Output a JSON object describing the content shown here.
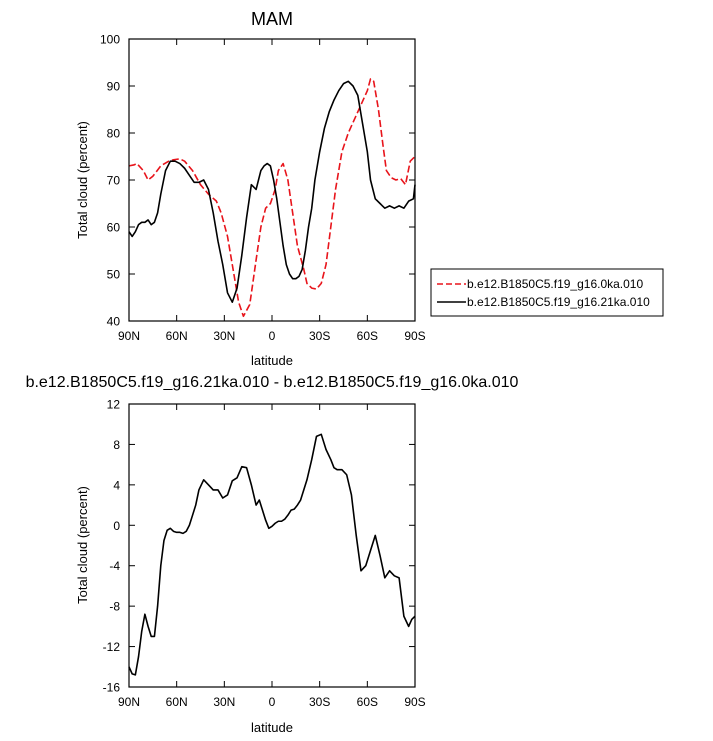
{
  "chart_data": [
    {
      "type": "line",
      "title": "MAM",
      "xlabel": "latitude",
      "ylabel": "Total cloud (percent)",
      "xlim": [
        -90,
        90
      ],
      "ylim": [
        40,
        100
      ],
      "x_ticks": [
        -90,
        -60,
        -30,
        0,
        30,
        60,
        90
      ],
      "x_tick_labels": [
        "90N",
        "60N",
        "30N",
        "0",
        "30S",
        "60S",
        "90S"
      ],
      "y_ticks": [
        40,
        50,
        60,
        70,
        80,
        90,
        100
      ],
      "y_tick_labels": [
        "40",
        "50",
        "60",
        "70",
        "80",
        "90",
        "100"
      ],
      "legend_position": "right",
      "grid": false,
      "series": [
        {
          "name": "b.e12.B1850C5.f19_g16.0ka.010",
          "color": "#e8141b",
          "dash": "dashed",
          "x": [
            -90,
            -87,
            -85,
            -81,
            -78,
            -75,
            -70,
            -65,
            -62,
            -58,
            -55,
            -50,
            -45,
            -40,
            -35,
            -32,
            -28,
            -25,
            -21,
            -18,
            -14,
            -10,
            -7,
            -4,
            -1,
            2,
            4,
            7,
            10,
            13,
            16,
            20,
            22,
            25,
            28,
            31,
            34,
            37,
            40,
            44,
            48,
            52,
            56,
            60,
            62,
            64,
            67,
            70,
            72,
            75,
            78,
            81,
            84,
            87,
            90
          ],
          "y": [
            73,
            73.2,
            73.5,
            72,
            70,
            70.8,
            73,
            74,
            74.3,
            74.5,
            74,
            72,
            69,
            67,
            65.5,
            63,
            58,
            52,
            44,
            41,
            43.5,
            53,
            60,
            64,
            65,
            68,
            72,
            73.5,
            70,
            63,
            56,
            51,
            48,
            47,
            46.8,
            48,
            52,
            60,
            68,
            76,
            80,
            83,
            86,
            89,
            91.5,
            91,
            85,
            77,
            72,
            70.5,
            70,
            70.3,
            69,
            74,
            75
          ]
        },
        {
          "name": "b.e12.B1850C5.f19_g16.21ka.010",
          "color": "#000000",
          "dash": "solid",
          "x": [
            -90,
            -88,
            -86,
            -84,
            -82,
            -80,
            -78,
            -76,
            -74,
            -72,
            -70,
            -67,
            -64,
            -61,
            -58,
            -55,
            -52,
            -49,
            -46,
            -43,
            -40,
            -37,
            -34,
            -31,
            -28,
            -25,
            -22,
            -19,
            -16,
            -13,
            -10,
            -7,
            -5,
            -3,
            -1,
            1,
            3,
            5,
            7,
            9,
            11,
            13,
            15,
            17,
            19,
            21,
            23,
            25,
            27,
            30,
            33,
            36,
            39,
            42,
            45,
            48,
            51,
            54,
            57,
            60,
            62,
            65,
            68,
            71,
            74,
            77,
            80,
            83,
            86,
            89,
            90
          ],
          "y": [
            59,
            58,
            59,
            60.5,
            61,
            61,
            61.5,
            60.5,
            61,
            63,
            67,
            72,
            74,
            74,
            73.5,
            72.5,
            71,
            69.5,
            69.5,
            70,
            68,
            63,
            57,
            52,
            46,
            44,
            47,
            54,
            62,
            69,
            68,
            72,
            73,
            73.5,
            73,
            70,
            66,
            61,
            56,
            52,
            50,
            49,
            49,
            49.5,
            51,
            55,
            60,
            64,
            70,
            76,
            81,
            84.5,
            87,
            89,
            90.5,
            91,
            90,
            88,
            82,
            76,
            70,
            66,
            65,
            64,
            64.5,
            64,
            64.5,
            64,
            65.5,
            66,
            69
          ]
        }
      ]
    },
    {
      "type": "line",
      "title": "b.e12.B1850C5.f19_g16.21ka.010 - b.e12.B1850C5.f19_g16.0ka.010",
      "xlabel": "latitude",
      "ylabel": "Total cloud (percent)",
      "xlim": [
        -90,
        90
      ],
      "ylim": [
        -16,
        12
      ],
      "x_ticks": [
        -90,
        -60,
        -30,
        0,
        30,
        60,
        90
      ],
      "x_tick_labels": [
        "90N",
        "60N",
        "30N",
        "0",
        "30S",
        "60S",
        "90S"
      ],
      "y_ticks": [
        -16,
        -12,
        -8,
        -4,
        0,
        4,
        8,
        12
      ],
      "y_tick_labels": [
        "-16",
        "-12",
        "-8",
        "-4",
        "0",
        "4",
        "8",
        "12"
      ],
      "grid": false,
      "series": [
        {
          "color": "#000000",
          "dash": "solid",
          "x": [
            -90,
            -88,
            -86,
            -84,
            -82,
            -80,
            -78,
            -76,
            -74,
            -72,
            -70,
            -68,
            -66,
            -64,
            -62,
            -60,
            -58,
            -56,
            -54,
            -52,
            -50,
            -48,
            -46,
            -43,
            -40,
            -37,
            -34,
            -31,
            -28,
            -25,
            -22,
            -19,
            -16,
            -13,
            -10,
            -8,
            -6,
            -4,
            -2,
            0,
            2,
            4,
            6,
            8,
            10,
            12,
            14,
            16,
            18,
            20,
            22,
            25,
            28,
            31,
            34,
            37,
            39,
            41,
            44,
            47,
            50,
            53,
            56,
            59,
            62,
            65,
            68,
            71,
            74,
            77,
            80,
            83,
            86,
            88,
            90
          ],
          "y": [
            -14,
            -14.7,
            -14.8,
            -13,
            -10.5,
            -8.8,
            -10,
            -11,
            -11,
            -8,
            -4,
            -1.5,
            -0.5,
            -0.3,
            -0.6,
            -0.7,
            -0.7,
            -0.8,
            -0.6,
            0,
            1,
            2,
            3.5,
            4.5,
            4,
            3.5,
            3.5,
            2.7,
            3,
            4.4,
            4.7,
            5.8,
            5.7,
            4,
            2,
            2.5,
            1.5,
            0.5,
            -0.3,
            -0.1,
            0.2,
            0.4,
            0.4,
            0.6,
            1,
            1.5,
            1.6,
            2,
            2.5,
            3.5,
            4.5,
            6.5,
            8.8,
            9,
            7.5,
            6.5,
            5.7,
            5.5,
            5.5,
            5,
            3,
            -1,
            -4.5,
            -4,
            -2.5,
            -1,
            -3,
            -5.2,
            -4.5,
            -5,
            -5.2,
            -9,
            -10,
            -9.3,
            -9
          ]
        }
      ]
    }
  ]
}
